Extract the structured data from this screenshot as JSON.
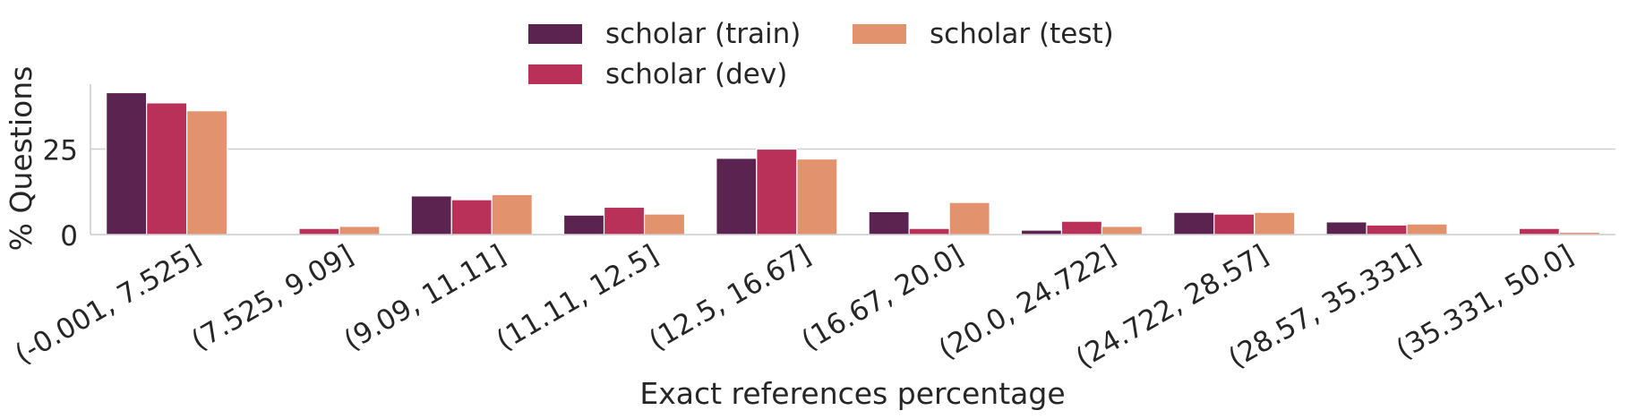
{
  "chart_data": {
    "type": "bar",
    "xlabel": "Exact references percentage",
    "ylabel": "% Questions",
    "ylim": [
      0,
      44
    ],
    "yticks": [
      0,
      25
    ],
    "grid": "horizontal",
    "legend_position": "top-center",
    "categories": [
      "(-0.001, 7.525]",
      "(7.525, 9.09]",
      "(9.09, 11.11]",
      "(11.11, 12.5]",
      "(12.5, 16.67]",
      "(16.67, 20.0]",
      "(20.0, 24.722]",
      "(24.722, 28.57]",
      "(28.57, 35.331]",
      "(35.331, 50.0]"
    ],
    "series": [
      {
        "name": "scholar (train)",
        "color": "#5a2350",
        "values": [
          41.5,
          0.3,
          11.3,
          5.7,
          22.3,
          6.7,
          1.3,
          6.5,
          3.7,
          0.0
        ]
      },
      {
        "name": "scholar (dev)",
        "color": "#b93158",
        "values": [
          38.5,
          1.8,
          10.2,
          8.0,
          25.0,
          1.8,
          3.9,
          6.0,
          2.8,
          1.8
        ]
      },
      {
        "name": "scholar (test)",
        "color": "#e3926e",
        "values": [
          36.2,
          2.4,
          11.7,
          6.0,
          22.1,
          9.4,
          2.4,
          6.5,
          3.1,
          0.7
        ]
      }
    ]
  }
}
